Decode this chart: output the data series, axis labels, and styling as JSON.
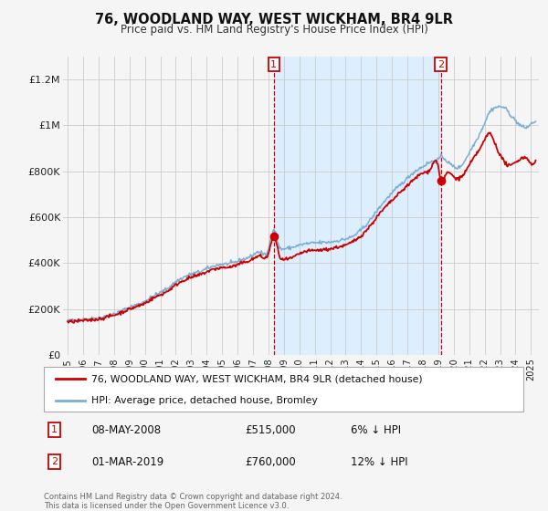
{
  "title": "76, WOODLAND WAY, WEST WICKHAM, BR4 9LR",
  "subtitle": "Price paid vs. HM Land Registry's House Price Index (HPI)",
  "legend_line1": "76, WOODLAND WAY, WEST WICKHAM, BR4 9LR (detached house)",
  "legend_line2": "HPI: Average price, detached house, Bromley",
  "footer": "Contains HM Land Registry data © Crown copyright and database right 2024.\nThis data is licensed under the Open Government Licence v3.0.",
  "sale1_x": 2008.35,
  "sale2_x": 2019.17,
  "sale1_y": 515000,
  "sale2_y": 760000,
  "hpi_color": "#7aaed6",
  "price_color": "#cc0000",
  "shade_color": "#ddeeff",
  "background_color": "#f5f5f5",
  "grid_color": "#cccccc",
  "annotation_box_color": "#cc0000",
  "ylim": [
    0,
    1300000
  ],
  "xlim_left": 1994.7,
  "xlim_right": 2025.5,
  "yticks": [
    0,
    200000,
    400000,
    600000,
    800000,
    1000000,
    1200000
  ],
  "ytick_labels": [
    "£0",
    "£200K",
    "£400K",
    "£600K",
    "£800K",
    "£1M",
    "£1.2M"
  ],
  "xticks": [
    1995,
    1996,
    1997,
    1998,
    1999,
    2000,
    2001,
    2002,
    2003,
    2004,
    2005,
    2006,
    2007,
    2008,
    2009,
    2010,
    2011,
    2012,
    2013,
    2014,
    2015,
    2016,
    2017,
    2018,
    2019,
    2020,
    2021,
    2022,
    2023,
    2024,
    2025
  ],
  "ann1_date": "08-MAY-2008",
  "ann1_price": "£515,000",
  "ann1_pct": "6% ↓ HPI",
  "ann2_date": "01-MAR-2019",
  "ann2_price": "£760,000",
  "ann2_pct": "12% ↓ HPI"
}
